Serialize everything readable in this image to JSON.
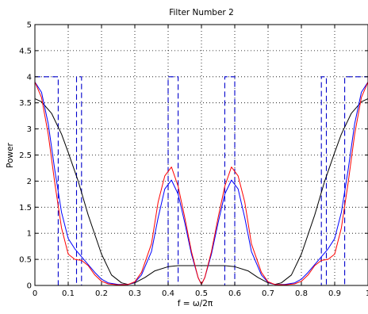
{
  "chart_data": {
    "type": "line",
    "title": "Filter Number 2",
    "xlabel": "f = ω/2π",
    "ylabel": "Power",
    "xlim": [
      0,
      1
    ],
    "ylim": [
      0,
      5
    ],
    "grid": true,
    "xticks": [
      0,
      0.1,
      0.2,
      0.3,
      0.4,
      0.5,
      0.6,
      0.7,
      0.8,
      0.9,
      1
    ],
    "xtick_labels": [
      "0",
      "0.1",
      "0.2",
      "0.3",
      "0.4",
      "0.5",
      "0.6",
      "0.7",
      "0.8",
      "0.9",
      "1"
    ],
    "yticks": [
      0,
      0.5,
      1,
      1.5,
      2,
      2.5,
      3,
      3.5,
      4,
      4.5,
      5
    ],
    "ytick_labels": [
      "0",
      "0.5",
      "1",
      "1.5",
      "2",
      "2.5",
      "3",
      "3.5",
      "4",
      "4.5",
      "5"
    ],
    "series": [
      {
        "color": "#0000cc",
        "style": "dashed",
        "x": [
          0,
          0.07,
          0.07,
          0.125,
          0.125,
          0.14,
          0.14,
          0.4,
          0.4,
          0.43,
          0.43,
          0.57,
          0.57,
          0.6,
          0.6,
          0.86,
          0.86,
          0.875,
          0.875,
          0.93,
          0.93,
          1
        ],
        "y": [
          4,
          4,
          0,
          0,
          4,
          4,
          0,
          0,
          4,
          4,
          0,
          0,
          4,
          4,
          0,
          0,
          4,
          4,
          0,
          0,
          4,
          4
        ]
      },
      {
        "color": "#000000",
        "style": "solid",
        "x": [
          0,
          0.02,
          0.05,
          0.08,
          0.1,
          0.13,
          0.16,
          0.2,
          0.23,
          0.26,
          0.28,
          0.3,
          0.33,
          0.36,
          0.4,
          0.43,
          0.46,
          0.5,
          0.54,
          0.57,
          0.6,
          0.64,
          0.67,
          0.7,
          0.72,
          0.74,
          0.77,
          0.8,
          0.84,
          0.87,
          0.9,
          0.92,
          0.95,
          0.98,
          1
        ],
        "y": [
          3.58,
          3.52,
          3.3,
          2.9,
          2.55,
          2.0,
          1.35,
          0.6,
          0.2,
          0.05,
          0.02,
          0.05,
          0.15,
          0.28,
          0.36,
          0.38,
          0.38,
          0.38,
          0.38,
          0.38,
          0.36,
          0.28,
          0.15,
          0.05,
          0.02,
          0.05,
          0.2,
          0.6,
          1.35,
          2.0,
          2.55,
          2.9,
          3.3,
          3.52,
          3.58
        ]
      },
      {
        "color": "#0000ff",
        "style": "solid",
        "x": [
          0,
          0.02,
          0.04,
          0.06,
          0.08,
          0.1,
          0.12,
          0.14,
          0.16,
          0.18,
          0.2,
          0.22,
          0.25,
          0.28,
          0.3,
          0.32,
          0.35,
          0.37,
          0.39,
          0.41,
          0.43,
          0.45,
          0.47,
          0.49,
          0.5,
          0.51,
          0.53,
          0.55,
          0.57,
          0.59,
          0.61,
          0.63,
          0.65,
          0.68,
          0.7,
          0.72,
          0.75,
          0.78,
          0.8,
          0.82,
          0.84,
          0.86,
          0.88,
          0.9,
          0.92,
          0.94,
          0.96,
          0.98,
          1
        ],
        "y": [
          3.9,
          3.7,
          3.1,
          2.2,
          1.4,
          0.9,
          0.7,
          0.55,
          0.4,
          0.25,
          0.12,
          0.05,
          0.02,
          0.02,
          0.06,
          0.2,
          0.65,
          1.3,
          1.85,
          2.02,
          1.75,
          1.2,
          0.6,
          0.15,
          0.02,
          0.15,
          0.6,
          1.2,
          1.75,
          2.02,
          1.85,
          1.3,
          0.65,
          0.2,
          0.06,
          0.02,
          0.02,
          0.05,
          0.12,
          0.25,
          0.4,
          0.55,
          0.7,
          0.9,
          1.4,
          2.2,
          3.1,
          3.7,
          3.9
        ]
      },
      {
        "color": "#ff0000",
        "style": "solid",
        "x": [
          0,
          0.02,
          0.04,
          0.06,
          0.08,
          0.1,
          0.12,
          0.14,
          0.16,
          0.18,
          0.2,
          0.22,
          0.25,
          0.28,
          0.3,
          0.32,
          0.35,
          0.37,
          0.39,
          0.41,
          0.43,
          0.45,
          0.47,
          0.49,
          0.5,
          0.51,
          0.53,
          0.55,
          0.57,
          0.59,
          0.61,
          0.63,
          0.65,
          0.68,
          0.7,
          0.72,
          0.75,
          0.78,
          0.8,
          0.82,
          0.84,
          0.86,
          0.88,
          0.9,
          0.92,
          0.94,
          0.96,
          0.98,
          1
        ],
        "y": [
          3.9,
          3.6,
          2.9,
          1.95,
          1.1,
          0.6,
          0.5,
          0.48,
          0.38,
          0.2,
          0.08,
          0.03,
          0.01,
          0.02,
          0.07,
          0.25,
          0.8,
          1.6,
          2.1,
          2.27,
          1.9,
          1.3,
          0.65,
          0.15,
          0.02,
          0.15,
          0.65,
          1.3,
          1.9,
          2.27,
          2.1,
          1.6,
          0.8,
          0.25,
          0.07,
          0.02,
          0.01,
          0.03,
          0.08,
          0.2,
          0.38,
          0.48,
          0.5,
          0.6,
          1.1,
          1.95,
          2.9,
          3.6,
          3.9
        ]
      }
    ]
  }
}
